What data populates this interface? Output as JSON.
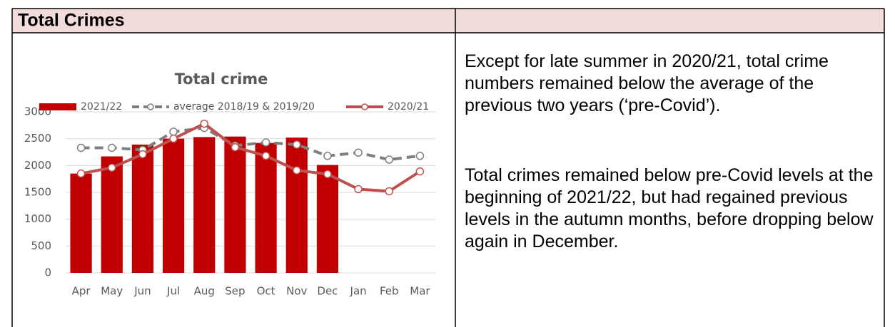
{
  "header": {
    "title": "Total Crimes"
  },
  "chart_data": {
    "type": "bar_line",
    "title": "Total crime",
    "categories": [
      "Apr",
      "May",
      "Jun",
      "Jul",
      "Aug",
      "Sep",
      "Oct",
      "Nov",
      "Dec",
      "Jan",
      "Feb",
      "Mar"
    ],
    "series": [
      {
        "name": "2021/22",
        "type": "bar",
        "color": "#c00000",
        "values": [
          1850,
          2170,
          2390,
          2500,
          2530,
          2540,
          2420,
          2520,
          2010,
          null,
          null,
          null
        ]
      },
      {
        "name": "average 2018/19 & 2019/20",
        "type": "line",
        "dashed": true,
        "color": "#7f7f7f",
        "values": [
          2330,
          2330,
          2290,
          2630,
          2700,
          2370,
          2430,
          2390,
          2180,
          2240,
          2110,
          2180
        ]
      },
      {
        "name": "2020/21",
        "type": "line",
        "dashed": false,
        "color": "#c0504d",
        "values": [
          1850,
          1960,
          2210,
          2500,
          2780,
          2340,
          2180,
          1910,
          1840,
          1560,
          1520,
          1890
        ]
      }
    ],
    "ylim": [
      0,
      3000
    ],
    "yticks": [
      0,
      500,
      1000,
      1500,
      2000,
      2500,
      3000
    ],
    "grid": true,
    "legend": "top"
  },
  "text": {
    "paragraphs": [
      "Except for late summer in 2020/21, total crime numbers remained below the average of the previous two years (‘pre-Covid’).",
      "Total crimes remained below pre-Covid levels at the beginning of 2021/22, but had regained previous levels in the autumn months, before dropping below again in December."
    ]
  }
}
